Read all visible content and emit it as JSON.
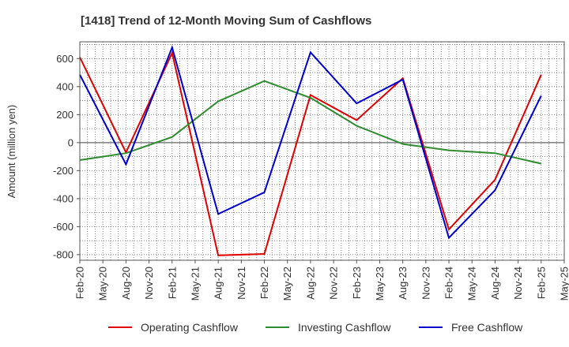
{
  "chart_data": {
    "type": "line",
    "title": "[1418]  Trend of 12-Month Moving Sum of Cashflows",
    "xlabel": "",
    "ylabel": "Amount (million yen)",
    "ylim": [
      -840,
      720
    ],
    "yticks": [
      -800,
      -600,
      -400,
      -200,
      0,
      200,
      400,
      600
    ],
    "categories": [
      "Feb-20",
      "May-20",
      "Aug-20",
      "Nov-20",
      "Feb-21",
      "May-21",
      "Aug-21",
      "Nov-21",
      "Feb-22",
      "May-22",
      "Aug-22",
      "Nov-22",
      "Feb-23",
      "May-23",
      "Aug-23",
      "Nov-23",
      "Feb-24",
      "May-24",
      "Aug-24",
      "Nov-24",
      "Feb-25",
      "May-25"
    ],
    "grid": true,
    "legend_position": "bottom",
    "series": [
      {
        "name": "Operating Cashflow",
        "color": "#e00000",
        "points": [
          {
            "x": "Feb-20",
            "y": 610
          },
          {
            "x": "Aug-20",
            "y": -70
          },
          {
            "x": "Feb-21",
            "y": 640
          },
          {
            "x": "Aug-21",
            "y": -805
          },
          {
            "x": "Feb-22",
            "y": -795
          },
          {
            "x": "Aug-22",
            "y": 340
          },
          {
            "x": "Feb-23",
            "y": 160
          },
          {
            "x": "Aug-23",
            "y": 460
          },
          {
            "x": "Feb-24",
            "y": -620
          },
          {
            "x": "Aug-24",
            "y": -265
          },
          {
            "x": "Feb-25",
            "y": 485
          }
        ]
      },
      {
        "name": "Investing Cashflow",
        "color": "#2e8b2e",
        "points": [
          {
            "x": "Feb-20",
            "y": -125
          },
          {
            "x": "Aug-20",
            "y": -75
          },
          {
            "x": "Feb-21",
            "y": 40
          },
          {
            "x": "Aug-21",
            "y": 295
          },
          {
            "x": "Feb-22",
            "y": 440
          },
          {
            "x": "Aug-22",
            "y": 320
          },
          {
            "x": "Feb-23",
            "y": 120
          },
          {
            "x": "Aug-23",
            "y": -10
          },
          {
            "x": "Feb-24",
            "y": -55
          },
          {
            "x": "Aug-24",
            "y": -75
          },
          {
            "x": "Feb-25",
            "y": -150
          }
        ]
      },
      {
        "name": "Free Cashflow",
        "color": "#0000cc",
        "points": [
          {
            "x": "Feb-20",
            "y": 485
          },
          {
            "x": "Aug-20",
            "y": -155
          },
          {
            "x": "Feb-21",
            "y": 680
          },
          {
            "x": "Aug-21",
            "y": -510
          },
          {
            "x": "Feb-22",
            "y": -355
          },
          {
            "x": "Aug-22",
            "y": 645
          },
          {
            "x": "Feb-23",
            "y": 280
          },
          {
            "x": "Aug-23",
            "y": 450
          },
          {
            "x": "Feb-24",
            "y": -680
          },
          {
            "x": "Aug-24",
            "y": -340
          },
          {
            "x": "Feb-25",
            "y": 335
          }
        ]
      }
    ]
  }
}
